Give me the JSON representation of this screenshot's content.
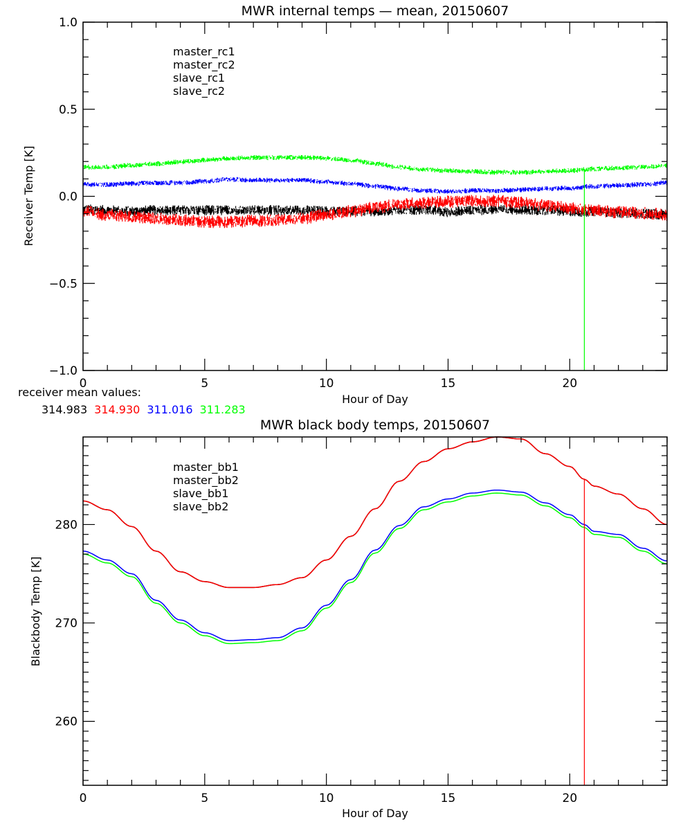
{
  "chart_data": [
    {
      "type": "line",
      "title": "MWR internal temps — mean, 20150607",
      "xlabel": "Hour of Day",
      "ylabel": "Receiver Temp [K]",
      "xlim": [
        0,
        24
      ],
      "ylim": [
        -1.0,
        1.0
      ],
      "x_ticks": [
        "0",
        "5",
        "10",
        "15",
        "20"
      ],
      "y_ticks": [
        "1.0",
        "0.5",
        "0.0",
        "−0.5",
        "−1.0"
      ],
      "y_tick_values": [
        1.0,
        0.5,
        0.0,
        -0.5,
        -1.0
      ],
      "x_tick_values": [
        0,
        5,
        10,
        15,
        20
      ],
      "grid": false,
      "legend": "top-left",
      "vline": {
        "x": 20.6,
        "color": "#00ff00"
      },
      "x": [
        0,
        1,
        2,
        3,
        4,
        5,
        6,
        7,
        8,
        9,
        10,
        11,
        12,
        13,
        14,
        15,
        16,
        17,
        18,
        19,
        20,
        21,
        22,
        23,
        24
      ],
      "series": [
        {
          "name": "master_rc1",
          "color": "#000000",
          "noise": 0.025,
          "values": [
            -0.07,
            -0.075,
            -0.08,
            -0.075,
            -0.075,
            -0.075,
            -0.075,
            -0.075,
            -0.075,
            -0.075,
            -0.08,
            -0.08,
            -0.085,
            -0.075,
            -0.07,
            -0.085,
            -0.075,
            -0.07,
            -0.07,
            -0.075,
            -0.08,
            -0.085,
            -0.09,
            -0.095,
            -0.1
          ]
        },
        {
          "name": "master_rc2",
          "color": "#ff0000",
          "noise": 0.03,
          "values": [
            -0.08,
            -0.1,
            -0.11,
            -0.12,
            -0.13,
            -0.14,
            -0.14,
            -0.135,
            -0.13,
            -0.12,
            -0.1,
            -0.08,
            -0.06,
            -0.04,
            -0.03,
            -0.025,
            -0.02,
            -0.02,
            -0.03,
            -0.045,
            -0.06,
            -0.075,
            -0.085,
            -0.09,
            -0.1
          ]
        },
        {
          "name": "slave_rc1",
          "color": "#0000ff",
          "noise": 0.012,
          "values": [
            0.07,
            0.07,
            0.075,
            0.08,
            0.08,
            0.09,
            0.1,
            0.095,
            0.095,
            0.095,
            0.085,
            0.075,
            0.06,
            0.045,
            0.035,
            0.03,
            0.035,
            0.035,
            0.04,
            0.045,
            0.05,
            0.06,
            0.065,
            0.07,
            0.08
          ]
        },
        {
          "name": "slave_rc2",
          "color": "#00ff00",
          "noise": 0.012,
          "values": [
            0.17,
            0.17,
            0.18,
            0.19,
            0.2,
            0.21,
            0.22,
            0.225,
            0.225,
            0.225,
            0.22,
            0.21,
            0.19,
            0.17,
            0.155,
            0.15,
            0.145,
            0.14,
            0.14,
            0.145,
            0.15,
            0.16,
            0.165,
            0.17,
            0.18
          ]
        }
      ],
      "footer_label": "receiver mean values:",
      "mean_values": [
        {
          "value": "314.983",
          "color": "#000000"
        },
        {
          "value": "314.930",
          "color": "#ff0000"
        },
        {
          "value": "311.016",
          "color": "#0000ff"
        },
        {
          "value": "311.283",
          "color": "#00ff00"
        }
      ]
    },
    {
      "type": "line",
      "title": "MWR black body temps, 20150607",
      "xlabel": "Hour of Day",
      "ylabel": "Blackbody Temp [K]",
      "xlim": [
        0,
        24
      ],
      "ylim": [
        253.5,
        288.9
      ],
      "x_ticks": [
        "0",
        "5",
        "10",
        "15",
        "20"
      ],
      "x_tick_values": [
        0,
        5,
        10,
        15,
        20
      ],
      "y_ticks": [
        "280",
        "270",
        "260"
      ],
      "y_tick_values": [
        280,
        270,
        260
      ],
      "grid": false,
      "legend": "top-left",
      "vline": {
        "x": 20.6,
        "color": "#ff0000"
      },
      "x": [
        0,
        1,
        2,
        3,
        4,
        5,
        6,
        7,
        8,
        9,
        10,
        11,
        12,
        13,
        14,
        15,
        16,
        17,
        18,
        19,
        20,
        20.6,
        21,
        22,
        23,
        24
      ],
      "series": [
        {
          "name": "master_bb1",
          "color": "#000000",
          "values": [
            282.4,
            281.5,
            279.8,
            277.3,
            275.2,
            274.2,
            273.6,
            273.6,
            273.9,
            274.6,
            276.4,
            278.8,
            281.6,
            284.4,
            286.4,
            287.7,
            288.4,
            288.9,
            288.7,
            287.2,
            285.9,
            284.6,
            283.9,
            283.1,
            281.6,
            280.0
          ]
        },
        {
          "name": "master_bb2",
          "color": "#ff0000",
          "values": [
            282.4,
            281.5,
            279.8,
            277.3,
            275.2,
            274.2,
            273.6,
            273.6,
            273.9,
            274.6,
            276.4,
            278.8,
            281.6,
            284.4,
            286.4,
            287.7,
            288.4,
            288.9,
            288.7,
            287.2,
            285.9,
            284.6,
            283.9,
            283.1,
            281.6,
            280.0
          ]
        },
        {
          "name": "slave_bb1",
          "color": "#0000ff",
          "values": [
            277.3,
            276.4,
            275.0,
            272.3,
            270.3,
            269.0,
            268.2,
            268.3,
            268.5,
            269.5,
            271.8,
            274.4,
            277.4,
            279.9,
            281.8,
            282.6,
            283.2,
            283.5,
            283.3,
            282.2,
            281.0,
            280.0,
            279.3,
            279.0,
            277.6,
            276.3
          ]
        },
        {
          "name": "slave_bb2",
          "color": "#00ff00",
          "values": [
            277.0,
            276.1,
            274.7,
            272.0,
            270.0,
            268.7,
            267.9,
            268.0,
            268.2,
            269.2,
            271.5,
            274.1,
            277.1,
            279.6,
            281.5,
            282.3,
            282.9,
            283.2,
            283.0,
            281.9,
            280.7,
            279.7,
            279.0,
            278.7,
            277.3,
            276.0
          ]
        }
      ]
    }
  ]
}
